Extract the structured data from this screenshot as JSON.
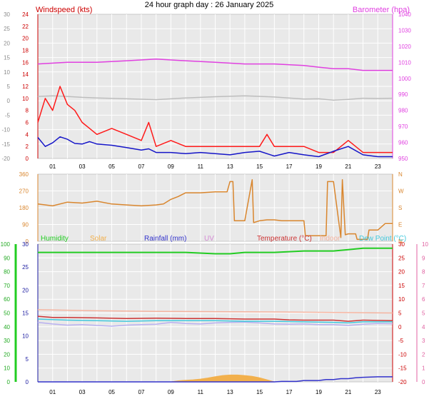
{
  "header": {
    "title": "24 hour graph day : 26 January 2025"
  },
  "colors": {
    "background": "#ffffff",
    "plot_bg": "#e9e9e9",
    "grid": "#ffffff",
    "wind_gust": "#ff1a1a",
    "wind_avg": "#1515c8",
    "barometer": "#e040e0",
    "gray_temp": "#bdbdbd",
    "wind_dir": "#d9862e",
    "humidity": "#22cc22",
    "solar": "#f2b04c",
    "rainfall": "#3333cc",
    "uv": "#d48bd4",
    "temperature": "#cc3333",
    "indoor": "#f5b4a0",
    "dew_point": "#40c8dc",
    "lavender": "#b8b0f0",
    "left_axis_green": "#22aa22",
    "left_axis_gray": "#8c8c8c",
    "axis_red": "#cc0000"
  },
  "chart_data": [
    {
      "type": "line",
      "title": "24 hour graph day : 26 January 2025",
      "x_hour_range": [
        0,
        24
      ],
      "x_tick_labels": [
        "01",
        "03",
        "05",
        "07",
        "09",
        "11",
        "13",
        "15",
        "17",
        "19",
        "21",
        "23"
      ],
      "axes": {
        "outer_left": {
          "ticks": [
            "30",
            "25",
            "20",
            "15",
            "10",
            "5",
            "0",
            "-5",
            "-10",
            "-15",
            "-20"
          ],
          "range": [
            -20,
            30
          ]
        },
        "left": {
          "label": "Windspeed (kts)",
          "ticks": [
            "24",
            "22",
            "20",
            "18",
            "16",
            "14",
            "12",
            "10",
            "8",
            "6",
            "4",
            "2",
            "0"
          ],
          "range": [
            0,
            24
          ]
        },
        "right": {
          "label": "Barometer (hpa)",
          "ticks": [
            "1040",
            "1030",
            "1020",
            "1010",
            "1000",
            "990",
            "980",
            "970",
            "960",
            "950"
          ],
          "range": [
            950,
            1040
          ]
        }
      },
      "series": [
        {
          "name": "Barometer (hpa)",
          "axis": "right",
          "x": [
            0,
            2,
            4,
            6,
            8,
            10,
            12,
            14,
            16,
            18,
            19,
            20,
            21,
            22,
            23,
            24
          ],
          "y": [
            1009,
            1010,
            1010,
            1011,
            1012,
            1011,
            1010,
            1009,
            1009,
            1008,
            1007,
            1006,
            1006,
            1005,
            1005,
            1005
          ]
        },
        {
          "axis": "outer_left",
          "x": [
            0,
            1,
            2,
            3,
            4,
            6,
            8,
            10,
            12,
            14,
            16,
            18,
            19,
            20,
            21,
            22,
            23,
            24
          ],
          "y": [
            1.5,
            1.7,
            1.5,
            1.2,
            1.0,
            0.7,
            0.4,
            1.0,
            1.4,
            1.7,
            1.3,
            0.6,
            0.7,
            0.2,
            0.5,
            0.9,
            0.8,
            0.9
          ]
        },
        {
          "name": "Windspeed (kts)",
          "axis": "left",
          "x": [
            0,
            0.5,
            1,
            1.5,
            2,
            2.5,
            3,
            4,
            5,
            6,
            7,
            7.5,
            8,
            9,
            10,
            11,
            12,
            13,
            14,
            15,
            15.5,
            16,
            17,
            18,
            19,
            20,
            21,
            22,
            23,
            24
          ],
          "y": [
            6,
            10,
            8,
            12,
            9,
            8,
            6,
            4,
            5,
            4,
            3,
            6,
            2,
            3,
            2,
            2,
            2,
            2,
            2,
            2,
            4,
            2,
            2,
            2,
            1,
            1,
            3,
            1,
            1,
            1
          ]
        },
        {
          "axis": "left",
          "x": [
            0,
            0.5,
            1,
            1.5,
            2,
            2.5,
            3,
            3.5,
            4,
            5,
            6,
            7,
            7.5,
            8,
            9,
            10,
            11,
            12,
            13,
            14,
            15,
            16,
            17,
            18,
            19,
            20,
            21,
            22,
            23,
            24
          ],
          "y": [
            3.5,
            2,
            2.6,
            3.6,
            3.2,
            2.5,
            2.4,
            2.8,
            2.4,
            2.2,
            1.8,
            1.4,
            1.6,
            1,
            1,
            0.8,
            1,
            0.8,
            0.6,
            1,
            1.2,
            0.4,
            1,
            0.6,
            0.3,
            1.2,
            2,
            0.6,
            0.3,
            0.3
          ]
        }
      ]
    },
    {
      "type": "line",
      "axes": {
        "left": {
          "ticks": [
            "360",
            "270",
            "180",
            "90",
            "0"
          ],
          "range": [
            0,
            360
          ]
        },
        "right": {
          "ticks": [
            "N",
            "W",
            "S",
            "E",
            "N"
          ]
        }
      },
      "series": [
        {
          "x": [
            0,
            1,
            2,
            3,
            4,
            5,
            6,
            7,
            8,
            8.5,
            9,
            9.5,
            10,
            11,
            12,
            12.8,
            13,
            13.2,
            13.3,
            14,
            14.5,
            14.6,
            15,
            15.5,
            16,
            16.5,
            18,
            18.1,
            19,
            19.5,
            19.6,
            20,
            20.5,
            20.6,
            20.8,
            21,
            21.5,
            21.6,
            22,
            22.3,
            22.4,
            23,
            23.5,
            24
          ],
          "y": [
            200,
            190,
            210,
            205,
            215,
            200,
            195,
            190,
            195,
            200,
            225,
            240,
            260,
            260,
            265,
            265,
            320,
            320,
            110,
            110,
            330,
            100,
            110,
            115,
            115,
            110,
            110,
            30,
            30,
            30,
            320,
            320,
            20,
            330,
            35,
            40,
            40,
            10,
            10,
            10,
            60,
            60,
            95,
            95
          ]
        }
      ]
    },
    {
      "type": "line",
      "legend": [
        "Humidity",
        "Solar",
        "Rainfall (mm)",
        "UV",
        "Temperature (°C)",
        "Indoor",
        "Dew Point (°C)"
      ],
      "axes": {
        "outer_left": {
          "ticks": [
            "100",
            "90",
            "80",
            "70",
            "60",
            "50",
            "40",
            "30",
            "20",
            "10",
            "0"
          ],
          "range": [
            0,
            100
          ]
        },
        "left": {
          "ticks": [
            "30",
            "25",
            "20",
            "15",
            "10",
            "5",
            "0"
          ],
          "range": [
            0,
            30
          ]
        },
        "right": {
          "ticks": [
            "30",
            "25",
            "20",
            "15",
            "10",
            "5",
            "0",
            "-5",
            "-10",
            "-15",
            "-20"
          ],
          "range": [
            -20,
            30
          ]
        },
        "right_outer": {
          "ticks": [
            "10",
            "9",
            "8",
            "7",
            "6",
            "5",
            "4",
            "3",
            "2",
            "1",
            "0"
          ],
          "range": [
            0,
            10
          ]
        }
      },
      "series": [
        {
          "name": "Humidity",
          "axis": "outer_left",
          "x": [
            0,
            2,
            4,
            6,
            8,
            10,
            12,
            13,
            14,
            15,
            16,
            18,
            19,
            20,
            21,
            22,
            23,
            24
          ],
          "y": [
            94,
            94,
            94,
            94,
            94,
            94,
            93,
            93,
            94,
            94,
            94,
            95,
            95,
            95,
            96,
            97,
            97,
            97
          ]
        },
        {
          "name": "Indoor",
          "axis": "right",
          "x": [
            0,
            4,
            8,
            12,
            16,
            20,
            24
          ],
          "y": [
            6.2,
            5.8,
            5.6,
            5.5,
            5.4,
            5.2,
            5.0
          ]
        },
        {
          "name": "Temperature (°C)",
          "axis": "right",
          "x": [
            0,
            1,
            2,
            4,
            6,
            8,
            10,
            12,
            14,
            16,
            17,
            18,
            20,
            21,
            22,
            24
          ],
          "y": [
            3.8,
            3.4,
            3.4,
            3.2,
            3.0,
            3.1,
            3.0,
            3.0,
            2.8,
            2.8,
            2.5,
            2.4,
            2.4,
            2.0,
            2.4,
            2.2
          ]
        },
        {
          "name": "Dew Point (°C)",
          "axis": "right",
          "x": [
            0,
            2,
            4,
            6,
            8,
            10,
            12,
            14,
            16,
            18,
            20,
            21,
            22,
            24
          ],
          "y": [
            2.8,
            2.4,
            2.2,
            2.0,
            2.2,
            2.2,
            2.2,
            2.0,
            2.0,
            1.8,
            1.6,
            1.4,
            1.8,
            1.8
          ]
        },
        {
          "axis": "right",
          "x": [
            0,
            1,
            2,
            3,
            4,
            5,
            6,
            7,
            8,
            9,
            10,
            11,
            12,
            13,
            14,
            15,
            16,
            17,
            18,
            19,
            20,
            21,
            22,
            23,
            24
          ],
          "y": [
            1.6,
            1.0,
            0.6,
            0.8,
            0.5,
            0.2,
            0.6,
            0.8,
            0.9,
            1.6,
            1.2,
            1.0,
            1.4,
            1.6,
            1.7,
            1.4,
            1.0,
            0.9,
            1.0,
            0.8,
            0.8,
            0.5,
            0.9,
            1.2,
            1.1
          ]
        },
        {
          "name": "Solar",
          "axis": "outer_left",
          "x": [
            9,
            9.5,
            10,
            10.5,
            11,
            11.5,
            12,
            12.5,
            13,
            13.5,
            14,
            14.5,
            15,
            15.5,
            16
          ],
          "y": [
            0,
            0.8,
            1.2,
            1.5,
            2.0,
            2.8,
            3.8,
            4.6,
            5.0,
            5.0,
            4.6,
            4.0,
            3.0,
            1.5,
            0
          ]
        },
        {
          "name": "Rainfall (mm)",
          "axis": "left",
          "x": [
            0,
            16,
            16.5,
            17.5,
            18,
            19,
            19.5,
            20,
            20.5,
            21,
            21.5,
            22,
            23,
            24
          ],
          "y": [
            0,
            0,
            0.1,
            0.1,
            0.3,
            0.3,
            0.5,
            0.5,
            0.7,
            0.7,
            0.9,
            1.0,
            1.1,
            1.1
          ]
        }
      ]
    }
  ]
}
